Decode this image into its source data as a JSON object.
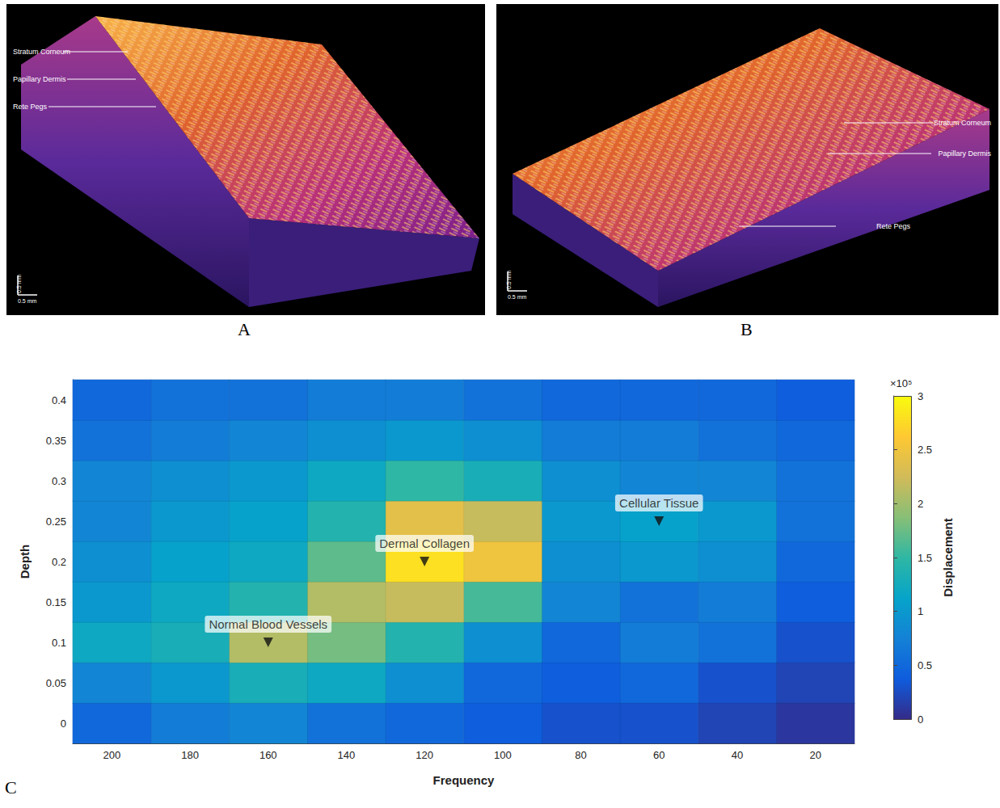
{
  "panels": [
    {
      "letter": "A",
      "labels": [
        "Stratum Corneum",
        "Papillary Dermis",
        "Rete Pegs"
      ],
      "scale_bar": "0.5 mm"
    },
    {
      "letter": "B",
      "labels": [
        "Stratum Corneum",
        "Papillary Dermis",
        "Rete Pegs"
      ],
      "scale_bar": "0.5 mm"
    }
  ],
  "chart_data": {
    "type": "heatmap",
    "panel_label": "C",
    "x_label": "Frequency",
    "y_label": "Depth",
    "z_label": "Displacement",
    "z_scale_label": "×10⁵",
    "x": [
      20,
      40,
      60,
      80,
      100,
      120,
      140,
      160,
      180,
      200
    ],
    "y": [
      0,
      0.05,
      0.1,
      0.15,
      0.2,
      0.25,
      0.3,
      0.35,
      0.4
    ],
    "values": [
      [
        0.1,
        0.2,
        0.3,
        0.3,
        0.4,
        0.5,
        0.6,
        0.8,
        0.7,
        0.5
      ],
      [
        0.2,
        0.3,
        0.5,
        0.4,
        0.5,
        0.9,
        1.2,
        1.3,
        1.0,
        0.8
      ],
      [
        0.3,
        0.6,
        0.7,
        0.5,
        0.9,
        1.4,
        1.8,
        2.1,
        1.3,
        1.2
      ],
      [
        0.4,
        0.7,
        0.6,
        0.8,
        1.6,
        2.2,
        2.1,
        1.4,
        1.2,
        1.0
      ],
      [
        0.5,
        0.9,
        1.0,
        0.9,
        2.5,
        2.8,
        1.7,
        1.2,
        1.1,
        0.9
      ],
      [
        0.6,
        1.0,
        1.1,
        1.0,
        2.2,
        2.4,
        1.4,
        1.1,
        1.0,
        0.8
      ],
      [
        0.6,
        0.8,
        0.8,
        0.9,
        1.3,
        1.5,
        1.2,
        1.0,
        0.9,
        0.8
      ],
      [
        0.5,
        0.6,
        0.7,
        0.7,
        0.9,
        1.0,
        0.9,
        0.8,
        0.7,
        0.6
      ],
      [
        0.4,
        0.5,
        0.5,
        0.5,
        0.6,
        0.7,
        0.7,
        0.6,
        0.6,
        0.5
      ]
    ],
    "zlim": [
      0,
      3
    ],
    "zticks": [
      0,
      0.5,
      1,
      1.5,
      2,
      2.5,
      3
    ],
    "annotations": [
      {
        "text": "Normal Blood Vessels",
        "x": 160,
        "y": 0.1
      },
      {
        "text": "Dermal Collagen",
        "x": 120,
        "y": 0.2
      },
      {
        "text": "Cellular Tissue",
        "x": 60,
        "y": 0.25
      }
    ]
  }
}
